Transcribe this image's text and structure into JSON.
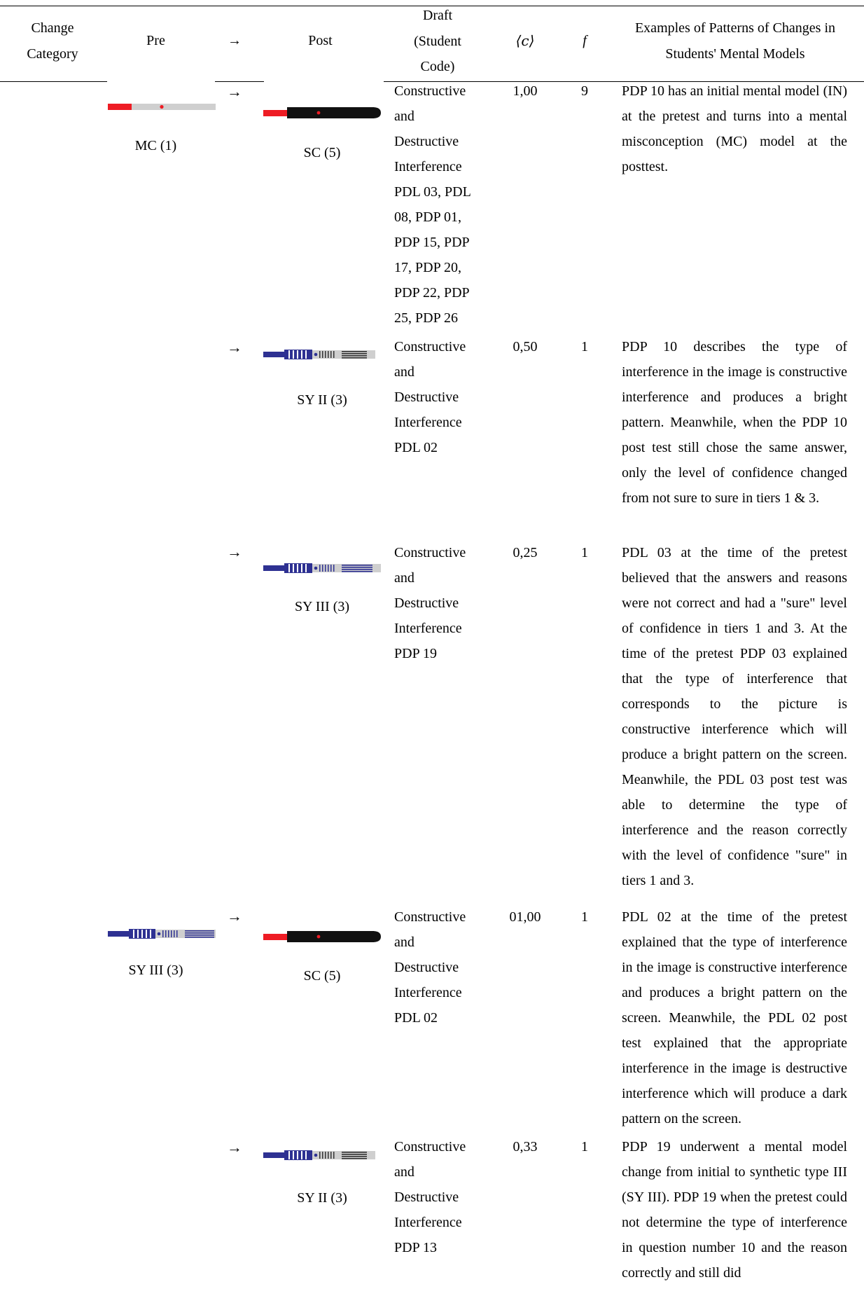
{
  "header": {
    "change_category": "Change Category",
    "pre": "Pre",
    "arrow": "→",
    "post": "Post",
    "draft": "Draft (Student Code)",
    "c": "⟨c⟩",
    "f": "f",
    "examples": "Examples of Patterns of Changes in Students' Mental Models"
  },
  "rows": [
    {
      "pre_label": "MC (1)",
      "arrow": "→",
      "post_label": "SC (5)",
      "draft": "Constructive and Destructive Interference PDL 03, PDL 08, PDP 01, PDP 15, PDP 17, PDP 20, PDP 22, PDP 25, PDP 26",
      "c": "1,00",
      "f": "9",
      "example": "PDP 10 has an initial mental model (IN) at the pretest and turns into a mental misconception (MC) model at the posttest."
    },
    {
      "arrow": "→",
      "post_label": "SY II (3)",
      "draft": "Constructive and Destructive Interference PDL 02",
      "c": "0,50",
      "f": "1",
      "example": "PDP 10 describes the type of interference in the image is constructive interference and produces a bright pattern. Meanwhile, when the PDP 10 post test still chose the same answer, only the level of confidence changed from not sure to sure in tiers 1 & 3."
    },
    {
      "arrow": "→",
      "post_label": "SY III (3)",
      "draft": "Constructive and Destructive Interference PDP 19",
      "c": "0,25",
      "f": "1",
      "example": "PDL 03 at the time of the pretest believed that the answers and reasons were not correct and had a \"sure\" level of confidence in tiers 1 and 3. At the time of the pretest PDP 03 explained that the type of interference that corresponds to the picture is constructive interference which will produce a bright pattern on the screen. Meanwhile, the PDL 03 post test was able to determine the type of interference and the reason correctly with the level of confidence \"sure\" in tiers 1 and 3."
    },
    {
      "pre_label": "SY III (3)",
      "arrow": "→",
      "post_label": "SC (5)",
      "draft": "Constructive and Destructive Interference PDL 02",
      "c": "01,00",
      "f": "1",
      "example": "PDL 02 at the time of the pretest explained that the type of interference in the image is constructive interference and produces a bright pattern on the screen. Meanwhile, the PDL 02 post test explained that the appropriate interference in the image is destructive interference which will produce a dark pattern on the screen."
    },
    {
      "arrow": "→",
      "post_label": "SY II (3)",
      "draft": "Constructive and Destructive Interference PDP 13",
      "c": "0,33",
      "f": "1",
      "example": "PDP 19 underwent a mental model change from initial to synthetic type III (SY III). PDP 19 when the pretest could not determine the type of interference in question number 10 and the reason correctly and still did"
    }
  ]
}
